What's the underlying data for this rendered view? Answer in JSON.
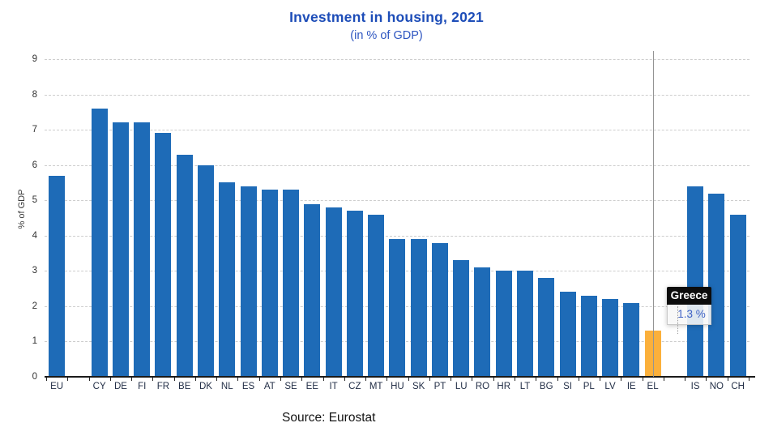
{
  "header": {
    "title": "Investment in housing, 2021",
    "subtitle": "(in % of GDP)"
  },
  "chart_data": {
    "type": "bar",
    "title": "Investment in housing, 2021",
    "subtitle": "(in % of GDP)",
    "xlabel": "",
    "ylabel": "% of GDP",
    "ylim": [
      0,
      9
    ],
    "yticks": [
      0,
      1,
      2,
      3,
      4,
      5,
      6,
      7,
      8,
      9
    ],
    "grid": "horizontal dashed gridlines",
    "legend": "none",
    "categories": [
      "EU",
      "",
      "CY",
      "DE",
      "FI",
      "FR",
      "BE",
      "DK",
      "NL",
      "ES",
      "AT",
      "SE",
      "EE",
      "IT",
      "CZ",
      "MT",
      "HU",
      "SK",
      "PT",
      "LU",
      "RO",
      "HR",
      "LT",
      "BG",
      "SI",
      "PL",
      "LV",
      "IE",
      "EL",
      "",
      "IS",
      "NO",
      "CH"
    ],
    "values": [
      5.7,
      null,
      7.6,
      7.2,
      7.2,
      6.9,
      6.3,
      6.0,
      5.5,
      5.4,
      5.3,
      5.3,
      4.9,
      4.8,
      4.7,
      4.6,
      3.9,
      3.9,
      3.8,
      3.3,
      3.1,
      3.0,
      3.0,
      2.8,
      2.4,
      2.3,
      2.2,
      2.1,
      1.3,
      null,
      5.4,
      5.2,
      4.6
    ],
    "highlight": {
      "category": "EL",
      "value": 1.3,
      "label": "Greece"
    }
  },
  "tooltip": {
    "title": "Greece",
    "value": "1.3 %"
  },
  "footer": {
    "source": "Source: Eurostat"
  },
  "colors": {
    "bar": "#1e6bb7",
    "highlight_bar": "#fbb03b",
    "title_text": "#1d4db8",
    "subtitle_text": "#2d55c0",
    "tooltip_value_text": "#3f62c5",
    "gridline": "#cdcdcd",
    "crosshair": "#949494"
  }
}
